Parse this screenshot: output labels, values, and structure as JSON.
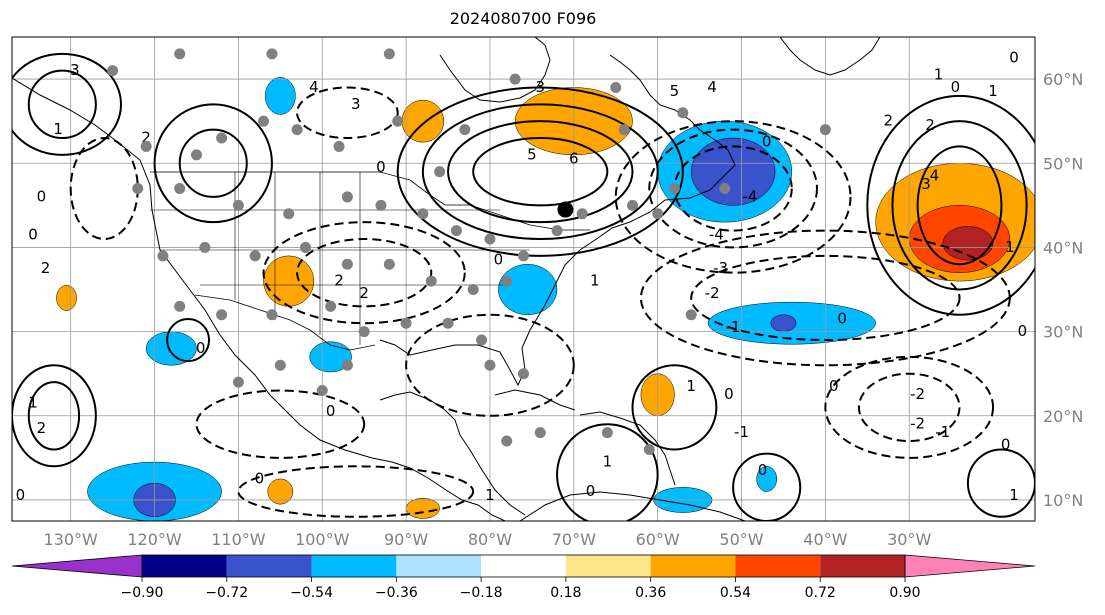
{
  "title": "2024080700 F096",
  "map": {
    "projection": "plate-carree",
    "lon_range": [
      -137,
      -15
    ],
    "lat_range": [
      7.5,
      65
    ],
    "lon_labels": [
      {
        "lon": -130,
        "text": "130°W"
      },
      {
        "lon": -120,
        "text": "120°W"
      },
      {
        "lon": -110,
        "text": "110°W"
      },
      {
        "lon": -100,
        "text": "100°W"
      },
      {
        "lon": -90,
        "text": "90°W"
      },
      {
        "lon": -80,
        "text": "80°W"
      },
      {
        "lon": -70,
        "text": "70°W"
      },
      {
        "lon": -60,
        "text": "60°W"
      },
      {
        "lon": -50,
        "text": "50°W"
      },
      {
        "lon": -40,
        "text": "40°W"
      },
      {
        "lon": -30,
        "text": "30°W"
      }
    ],
    "lat_labels": [
      {
        "lat": 60,
        "text": "60°N"
      },
      {
        "lat": 50,
        "text": "50°N"
      },
      {
        "lat": 40,
        "text": "40°N"
      },
      {
        "lat": 30,
        "text": "30°N"
      },
      {
        "lat": 20,
        "text": "20°N"
      },
      {
        "lat": 10,
        "text": "10°N"
      }
    ],
    "grid": true,
    "colorbar": {
      "levels": [
        "−0.90",
        "−0.72",
        "−0.54",
        "−0.36",
        "−0.18",
        "0.18",
        "0.36",
        "0.54",
        "0.72",
        "0.90"
      ],
      "colors": [
        "#9932cc",
        "#00008b",
        "#3a52cc",
        "#00bbff",
        "#aee0ff",
        "#ffffff",
        "#ffe68a",
        "#ffa500",
        "#ff4500",
        "#b22222",
        "#ff82b4"
      ],
      "extend": "both"
    },
    "shaded_areas": [
      {
        "lon": -70,
        "lat": 55,
        "rx": 7,
        "ry": 4,
        "color": "#ffa500"
      },
      {
        "lon": -88,
        "lat": 55,
        "rx": 2.5,
        "ry": 2.5,
        "color": "#ffa500"
      },
      {
        "lon": -52,
        "lat": 49,
        "rx": 8,
        "ry": 6,
        "color": "#00bbff"
      },
      {
        "lon": -51,
        "lat": 49,
        "rx": 5,
        "ry": 4,
        "color": "#3a52cc"
      },
      {
        "lon": -24,
        "lat": 43,
        "rx": 10,
        "ry": 7,
        "color": "#ffa500"
      },
      {
        "lon": -24,
        "lat": 41,
        "rx": 6,
        "ry": 4,
        "color": "#ff4500"
      },
      {
        "lon": -23,
        "lat": 40.5,
        "rx": 3,
        "ry": 2,
        "color": "#b22222"
      },
      {
        "lon": -44,
        "lat": 31,
        "rx": 10,
        "ry": 2.5,
        "color": "#00bbff"
      },
      {
        "lon": -45,
        "lat": 31,
        "rx": 1.5,
        "ry": 1,
        "color": "#3a52cc"
      },
      {
        "lon": -75.5,
        "lat": 35,
        "rx": 3.5,
        "ry": 3,
        "color": "#00bbff"
      },
      {
        "lon": -104,
        "lat": 36,
        "rx": 3,
        "ry": 3,
        "color": "#ffa500"
      },
      {
        "lon": -120,
        "lat": 11,
        "rx": 8,
        "ry": 3.5,
        "color": "#00bbff"
      },
      {
        "lon": -120,
        "lat": 10,
        "rx": 2.5,
        "ry": 2,
        "color": "#3a52cc"
      },
      {
        "lon": -118,
        "lat": 28,
        "rx": 3,
        "ry": 2,
        "color": "#00bbff"
      },
      {
        "lon": -99,
        "lat": 27,
        "rx": 2.5,
        "ry": 1.8,
        "color": "#00bbff"
      },
      {
        "lon": -60,
        "lat": 22.5,
        "rx": 2,
        "ry": 2.5,
        "color": "#ffa500"
      },
      {
        "lon": -57,
        "lat": 10,
        "rx": 3.5,
        "ry": 1.5,
        "color": "#00bbff"
      },
      {
        "lon": -105,
        "lat": 11,
        "rx": 1.5,
        "ry": 1.5,
        "color": "#ffa500"
      },
      {
        "lon": -47,
        "lat": 12.5,
        "rx": 1.2,
        "ry": 1.5,
        "color": "#00bbff"
      },
      {
        "lon": -105,
        "lat": 58,
        "rx": 1.8,
        "ry": 2.2,
        "color": "#00bbff"
      },
      {
        "lon": -130.5,
        "lat": 34,
        "rx": 1.2,
        "ry": 1.5,
        "color": "#ffa500"
      },
      {
        "lon": -88,
        "lat": 9,
        "rx": 2,
        "ry": 1.2,
        "color": "#ffa500"
      }
    ],
    "contours": [
      {
        "lon": -74,
        "lat": 49,
        "rx": 8,
        "ry": 4,
        "dashed": false
      },
      {
        "lon": -74,
        "lat": 49,
        "rx": 11,
        "ry": 6,
        "dashed": false
      },
      {
        "lon": -74,
        "lat": 49,
        "rx": 14,
        "ry": 8,
        "dashed": false
      },
      {
        "lon": -74,
        "lat": 49,
        "rx": 17,
        "ry": 10,
        "dashed": false
      },
      {
        "lon": -24,
        "lat": 45,
        "rx": 5,
        "ry": 7,
        "dashed": false
      },
      {
        "lon": -24,
        "lat": 45,
        "rx": 8,
        "ry": 10,
        "dashed": false
      },
      {
        "lon": -24,
        "lat": 45,
        "rx": 11,
        "ry": 13,
        "dashed": false
      },
      {
        "lon": -131,
        "lat": 57,
        "rx": 4,
        "ry": 4,
        "dashed": false
      },
      {
        "lon": -131,
        "lat": 57,
        "rx": 7,
        "ry": 6,
        "dashed": false
      },
      {
        "lon": -113,
        "lat": 50,
        "rx": 4,
        "ry": 4,
        "dashed": false
      },
      {
        "lon": -113,
        "lat": 50,
        "rx": 7,
        "ry": 7,
        "dashed": false
      },
      {
        "lon": -132,
        "lat": 20,
        "rx": 3,
        "ry": 4,
        "dashed": false
      },
      {
        "lon": -132,
        "lat": 20,
        "rx": 5,
        "ry": 6,
        "dashed": false
      },
      {
        "lon": -116,
        "lat": 29,
        "rx": 2.5,
        "ry": 2.5,
        "dashed": false
      },
      {
        "lon": -58,
        "lat": 21,
        "rx": 5,
        "ry": 5,
        "dashed": false
      },
      {
        "lon": -66,
        "lat": 13,
        "rx": 6,
        "ry": 6,
        "dashed": false
      },
      {
        "lon": -47,
        "lat": 11.5,
        "rx": 4,
        "ry": 4,
        "dashed": false
      },
      {
        "lon": -19,
        "lat": 12,
        "rx": 4,
        "ry": 4,
        "dashed": false
      },
      {
        "lon": -51,
        "lat": 47,
        "rx": 7,
        "ry": 5,
        "dashed": true
      },
      {
        "lon": -51,
        "lat": 47,
        "rx": 10,
        "ry": 7,
        "dashed": true
      },
      {
        "lon": -51,
        "lat": 46,
        "rx": 14,
        "ry": 9,
        "dashed": true
      },
      {
        "lon": -40,
        "lat": 34,
        "rx": 16,
        "ry": 5,
        "dashed": true
      },
      {
        "lon": -40,
        "lat": 34,
        "rx": 22,
        "ry": 8,
        "dashed": true
      },
      {
        "lon": -30,
        "lat": 21,
        "rx": 6,
        "ry": 4,
        "dashed": true
      },
      {
        "lon": -30,
        "lat": 21,
        "rx": 10,
        "ry": 6,
        "dashed": true
      },
      {
        "lon": -95,
        "lat": 37,
        "rx": 8,
        "ry": 4,
        "dashed": true
      },
      {
        "lon": -95,
        "lat": 37,
        "rx": 12,
        "ry": 6,
        "dashed": true
      },
      {
        "lon": -97,
        "lat": 56,
        "rx": 6,
        "ry": 3,
        "dashed": true
      },
      {
        "lon": -105,
        "lat": 19,
        "rx": 10,
        "ry": 4,
        "dashed": true
      },
      {
        "lon": -126,
        "lat": 47,
        "rx": 4,
        "ry": 6,
        "dashed": true
      },
      {
        "lon": -96,
        "lat": 11,
        "rx": 14,
        "ry": 3,
        "dashed": true
      },
      {
        "lon": -80,
        "lat": 26,
        "rx": 10,
        "ry": 6,
        "dashed": true
      }
    ],
    "contour_labels": [
      {
        "lon": -129.5,
        "lat": 61,
        "text": "3"
      },
      {
        "lon": -121,
        "lat": 53,
        "text": "2"
      },
      {
        "lon": -131.5,
        "lat": 54,
        "text": "1"
      },
      {
        "lon": -133.5,
        "lat": 46,
        "text": "0"
      },
      {
        "lon": -134.5,
        "lat": 41.5,
        "text": "0"
      },
      {
        "lon": -133,
        "lat": 37.5,
        "text": "2"
      },
      {
        "lon": -134.5,
        "lat": 21.5,
        "text": "1"
      },
      {
        "lon": -133.5,
        "lat": 18.5,
        "text": "2"
      },
      {
        "lon": -114.5,
        "lat": 28,
        "text": "0"
      },
      {
        "lon": -93,
        "lat": 49.5,
        "text": "0"
      },
      {
        "lon": -101,
        "lat": 59,
        "text": "4"
      },
      {
        "lon": -96,
        "lat": 57,
        "text": "3"
      },
      {
        "lon": -75,
        "lat": 51,
        "text": "5"
      },
      {
        "lon": -70,
        "lat": 50.5,
        "text": "6"
      },
      {
        "lon": -79,
        "lat": 38.5,
        "text": "0"
      },
      {
        "lon": -98,
        "lat": 36,
        "text": "2"
      },
      {
        "lon": -95,
        "lat": 34.5,
        "text": "2"
      },
      {
        "lon": -99,
        "lat": 20.5,
        "text": "0"
      },
      {
        "lon": -67.5,
        "lat": 36,
        "text": "1"
      },
      {
        "lon": -58,
        "lat": 58.5,
        "text": "5"
      },
      {
        "lon": -53.5,
        "lat": 59,
        "text": "4"
      },
      {
        "lon": -47,
        "lat": 52.5,
        "text": "0"
      },
      {
        "lon": -49,
        "lat": 46,
        "text": "-4"
      },
      {
        "lon": -53,
        "lat": 41.5,
        "text": "-4"
      },
      {
        "lon": -52.5,
        "lat": 37.5,
        "text": "-3"
      },
      {
        "lon": -53.5,
        "lat": 34.5,
        "text": "-2"
      },
      {
        "lon": -51,
        "lat": 30.5,
        "text": "-1"
      },
      {
        "lon": -38,
        "lat": 31.5,
        "text": "0"
      },
      {
        "lon": -16.5,
        "lat": 30,
        "text": "0"
      },
      {
        "lon": -26.5,
        "lat": 60.5,
        "text": "1"
      },
      {
        "lon": -24.5,
        "lat": 59,
        "text": "0"
      },
      {
        "lon": -20,
        "lat": 58.5,
        "text": "1"
      },
      {
        "lon": -17.5,
        "lat": 62.5,
        "text": "0"
      },
      {
        "lon": -32.5,
        "lat": 55,
        "text": "2"
      },
      {
        "lon": -27.5,
        "lat": 54.5,
        "text": "2"
      },
      {
        "lon": -27,
        "lat": 48.5,
        "text": "4"
      },
      {
        "lon": -28,
        "lat": 47.5,
        "text": "3"
      },
      {
        "lon": -18,
        "lat": 40,
        "text": "1"
      },
      {
        "lon": -39,
        "lat": 23.5,
        "text": "0"
      },
      {
        "lon": -29,
        "lat": 22.5,
        "text": "-2"
      },
      {
        "lon": -29,
        "lat": 19,
        "text": "-2"
      },
      {
        "lon": -26,
        "lat": 18,
        "text": "-1"
      },
      {
        "lon": -18.5,
        "lat": 16.5,
        "text": "0"
      },
      {
        "lon": -17.5,
        "lat": 10.5,
        "text": "1"
      },
      {
        "lon": -50,
        "lat": 18,
        "text": "-1"
      },
      {
        "lon": -51.5,
        "lat": 22.5,
        "text": "0"
      },
      {
        "lon": -56,
        "lat": 23.5,
        "text": "1"
      },
      {
        "lon": -66,
        "lat": 14.5,
        "text": "1"
      },
      {
        "lon": -68,
        "lat": 11,
        "text": "0"
      },
      {
        "lon": -80,
        "lat": 10.5,
        "text": "1"
      },
      {
        "lon": -47.5,
        "lat": 13.5,
        "text": "0"
      },
      {
        "lon": -107.5,
        "lat": 12.5,
        "text": "0"
      },
      {
        "lon": -136,
        "lat": 10.5,
        "text": "0"
      },
      {
        "lon": -74,
        "lat": 59,
        "text": "3"
      }
    ],
    "station_dots": [
      {
        "lon": -125,
        "lat": 61
      },
      {
        "lon": -117,
        "lat": 63
      },
      {
        "lon": -106,
        "lat": 63
      },
      {
        "lon": -92,
        "lat": 63
      },
      {
        "lon": -77,
        "lat": 60
      },
      {
        "lon": -65,
        "lat": 59
      },
      {
        "lon": -57,
        "lat": 56
      },
      {
        "lon": -64,
        "lat": 54
      },
      {
        "lon": -121,
        "lat": 52
      },
      {
        "lon": -115,
        "lat": 51
      },
      {
        "lon": -112,
        "lat": 53
      },
      {
        "lon": -107,
        "lat": 55
      },
      {
        "lon": -103,
        "lat": 54
      },
      {
        "lon": -98,
        "lat": 52
      },
      {
        "lon": -91,
        "lat": 55
      },
      {
        "lon": -122,
        "lat": 47
      },
      {
        "lon": -117,
        "lat": 47
      },
      {
        "lon": -110,
        "lat": 45
      },
      {
        "lon": -104,
        "lat": 44
      },
      {
        "lon": -97,
        "lat": 46
      },
      {
        "lon": -93,
        "lat": 45
      },
      {
        "lon": -88,
        "lat": 44
      },
      {
        "lon": -84,
        "lat": 42
      },
      {
        "lon": -80,
        "lat": 41
      },
      {
        "lon": -76,
        "lat": 39
      },
      {
        "lon": -72,
        "lat": 42
      },
      {
        "lon": -69,
        "lat": 44
      },
      {
        "lon": -63,
        "lat": 45
      },
      {
        "lon": -58,
        "lat": 47
      },
      {
        "lon": -60,
        "lat": 44
      },
      {
        "lon": -119,
        "lat": 39
      },
      {
        "lon": -114,
        "lat": 40
      },
      {
        "lon": -108,
        "lat": 39
      },
      {
        "lon": -102,
        "lat": 40
      },
      {
        "lon": -97,
        "lat": 38
      },
      {
        "lon": -92,
        "lat": 38
      },
      {
        "lon": -87,
        "lat": 36
      },
      {
        "lon": -82,
        "lat": 35
      },
      {
        "lon": -78,
        "lat": 36
      },
      {
        "lon": -117,
        "lat": 33
      },
      {
        "lon": -112,
        "lat": 32
      },
      {
        "lon": -106,
        "lat": 32
      },
      {
        "lon": -99,
        "lat": 33
      },
      {
        "lon": -95,
        "lat": 30
      },
      {
        "lon": -90,
        "lat": 31
      },
      {
        "lon": -85,
        "lat": 31
      },
      {
        "lon": -81,
        "lat": 29
      },
      {
        "lon": -80,
        "lat": 26
      },
      {
        "lon": -97,
        "lat": 26
      },
      {
        "lon": -105,
        "lat": 26
      },
      {
        "lon": -110,
        "lat": 24
      },
      {
        "lon": -100,
        "lat": 23
      },
      {
        "lon": -76,
        "lat": 25
      },
      {
        "lon": -74,
        "lat": 18
      },
      {
        "lon": -66,
        "lat": 18
      },
      {
        "lon": -61,
        "lat": 16
      },
      {
        "lon": -56,
        "lat": 32
      },
      {
        "lon": -52,
        "lat": 47
      },
      {
        "lon": -40,
        "lat": 54
      },
      {
        "lon": -83,
        "lat": 54
      },
      {
        "lon": -86,
        "lat": 49
      },
      {
        "lon": -78,
        "lat": 17
      }
    ],
    "highlight_dot": {
      "lon": -71,
      "lat": 44.5
    }
  }
}
